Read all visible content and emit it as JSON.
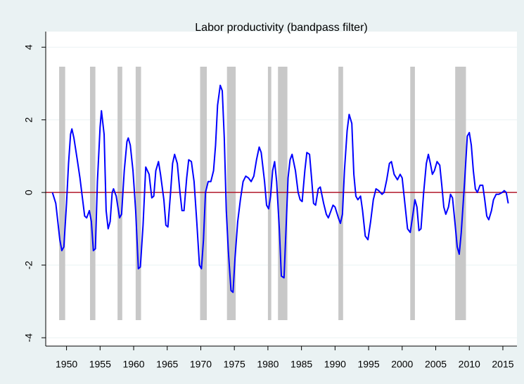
{
  "chart_data": {
    "type": "line",
    "title": "Labor productivity (bandpass filter)",
    "x": [
      1947.9,
      1948.4,
      1949.0,
      1949.3,
      1949.6,
      1950.0,
      1950.3,
      1950.6,
      1950.8,
      1951.1,
      1951.6,
      1952.0,
      1952.4,
      1952.7,
      1953.0,
      1953.4,
      1953.7,
      1954.0,
      1954.3,
      1954.6,
      1955.0,
      1955.2,
      1955.6,
      1955.9,
      1956.2,
      1956.5,
      1956.8,
      1957.0,
      1957.4,
      1957.9,
      1958.2,
      1958.6,
      1959.0,
      1959.2,
      1959.5,
      1959.9,
      1960.3,
      1960.7,
      1961.0,
      1961.4,
      1961.8,
      1962.3,
      1962.7,
      1963.0,
      1963.3,
      1963.7,
      1964.0,
      1964.5,
      1964.8,
      1965.1,
      1965.5,
      1965.8,
      1966.1,
      1966.5,
      1966.9,
      1967.2,
      1967.5,
      1967.9,
      1968.2,
      1968.6,
      1969.0,
      1969.4,
      1969.8,
      1970.1,
      1970.4,
      1970.7,
      1971.1,
      1971.5,
      1971.9,
      1972.2,
      1972.5,
      1972.9,
      1973.2,
      1973.5,
      1973.8,
      1974.1,
      1974.5,
      1974.8,
      1975.1,
      1975.5,
      1975.9,
      1976.3,
      1976.7,
      1977.1,
      1977.5,
      1977.9,
      1978.3,
      1978.7,
      1979.0,
      1979.5,
      1979.8,
      1980.1,
      1980.4,
      1980.7,
      1981.0,
      1981.3,
      1981.7,
      1982.0,
      1982.4,
      1982.7,
      1983.0,
      1983.3,
      1983.6,
      1984.1,
      1984.5,
      1984.8,
      1985.1,
      1985.5,
      1985.8,
      1986.2,
      1986.5,
      1986.8,
      1987.1,
      1987.5,
      1987.8,
      1988.3,
      1988.7,
      1989.0,
      1989.4,
      1989.7,
      1990.0,
      1990.5,
      1990.8,
      1991.1,
      1991.4,
      1991.8,
      1992.1,
      1992.5,
      1992.8,
      1993.1,
      1993.4,
      1993.8,
      1994.1,
      1994.5,
      1994.9,
      1995.3,
      1995.7,
      1996.1,
      1996.5,
      1997.0,
      1997.3,
      1997.7,
      1998.1,
      1998.4,
      1998.8,
      1999.3,
      1999.7,
      2000.0,
      2000.4,
      2000.8,
      2001.2,
      2001.6,
      2001.9,
      2002.2,
      2002.5,
      2002.8,
      2003.2,
      2003.6,
      2003.9,
      2004.2,
      2004.5,
      2004.8,
      2005.2,
      2005.6,
      2005.9,
      2006.2,
      2006.5,
      2006.9,
      2007.2,
      2007.5,
      2007.9,
      2008.2,
      2008.5,
      2008.8,
      2009.3,
      2009.7,
      2010.0,
      2010.3,
      2010.6,
      2010.9,
      2011.2,
      2011.6,
      2012.0,
      2012.3,
      2012.6,
      2012.9,
      2013.3,
      2013.6,
      2014.0,
      2014.4,
      2014.9,
      2015.2,
      2015.5,
      2015.8
    ],
    "values": [
      0,
      -0.3,
      -1.3,
      -1.6,
      -1.5,
      -0.3,
      0.8,
      1.6,
      1.75,
      1.5,
      0.9,
      0.4,
      -0.2,
      -0.65,
      -0.7,
      -0.5,
      -0.8,
      -1.6,
      -1.55,
      0.3,
      1.8,
      2.25,
      1.6,
      -0.5,
      -1.0,
      -0.8,
      0.0,
      0.1,
      -0.1,
      -0.7,
      -0.6,
      0.6,
      1.4,
      1.5,
      1.3,
      0.6,
      -0.5,
      -2.1,
      -2.05,
      -0.9,
      0.7,
      0.5,
      -0.15,
      -0.1,
      0.6,
      0.85,
      0.5,
      -0.2,
      -0.9,
      -0.95,
      0.0,
      0.8,
      1.05,
      0.8,
      0.0,
      -0.5,
      -0.5,
      0.4,
      0.9,
      0.85,
      0.3,
      -0.8,
      -2.0,
      -2.1,
      -1.3,
      0.0,
      0.3,
      0.3,
      0.6,
      1.3,
      2.4,
      2.95,
      2.8,
      1.5,
      -0.5,
      -1.6,
      -2.7,
      -2.75,
      -1.8,
      -0.8,
      -0.2,
      0.3,
      0.45,
      0.4,
      0.3,
      0.45,
      0.9,
      1.25,
      1.1,
      0.3,
      -0.35,
      -0.45,
      -0.1,
      0.6,
      0.85,
      0.3,
      -1.0,
      -2.3,
      -2.35,
      -1.0,
      0.4,
      0.9,
      1.05,
      0.6,
      0.0,
      -0.2,
      -0.25,
      0.6,
      1.1,
      1.05,
      0.4,
      -0.3,
      -0.35,
      0.1,
      0.15,
      -0.3,
      -0.6,
      -0.7,
      -0.5,
      -0.35,
      -0.4,
      -0.7,
      -0.85,
      -0.6,
      0.6,
      1.7,
      2.15,
      1.9,
      0.5,
      -0.1,
      -0.2,
      -0.1,
      -0.5,
      -1.2,
      -1.3,
      -0.8,
      -0.2,
      0.1,
      0.05,
      -0.05,
      0.0,
      0.35,
      0.8,
      0.85,
      0.5,
      0.35,
      0.5,
      0.4,
      -0.3,
      -1.0,
      -1.1,
      -0.6,
      -0.2,
      -0.4,
      -1.05,
      -1.0,
      0.0,
      0.8,
      1.05,
      0.8,
      0.5,
      0.6,
      0.85,
      0.75,
      0.2,
      -0.4,
      -0.6,
      -0.4,
      -0.05,
      -0.15,
      -0.9,
      -1.5,
      -1.7,
      -1.1,
      0.3,
      1.55,
      1.65,
      1.3,
      0.6,
      0.1,
      0.0,
      0.2,
      0.2,
      -0.2,
      -0.65,
      -0.75,
      -0.5,
      -0.2,
      -0.05,
      -0.05,
      0.0,
      0.05,
      0.0,
      -0.3
    ],
    "color": "#0000ff",
    "recessions": [
      [
        1948.9,
        1949.8
      ],
      [
        1953.5,
        1954.3
      ],
      [
        1957.6,
        1958.3
      ],
      [
        1960.3,
        1961.1
      ],
      [
        1969.9,
        1970.9
      ],
      [
        1973.9,
        1975.2
      ],
      [
        1980.0,
        1980.5
      ],
      [
        1981.5,
        1982.9
      ],
      [
        1990.5,
        1991.2
      ],
      [
        2001.2,
        2001.9
      ],
      [
        2007.9,
        2009.5
      ]
    ],
    "recession_color": "#c8c8c8",
    "reference_line": 0,
    "reference_color": "#b2182b",
    "xlim": [
      1946.9,
      2017.1
    ],
    "xticks": [
      1950,
      1955,
      1960,
      1965,
      1970,
      1975,
      1980,
      1985,
      1990,
      1995,
      2000,
      2005,
      2010,
      2015
    ],
    "ylim": [
      -4.23,
      4.43
    ],
    "yticks": [
      -4,
      -2,
      0,
      2,
      4
    ],
    "grid": true
  }
}
